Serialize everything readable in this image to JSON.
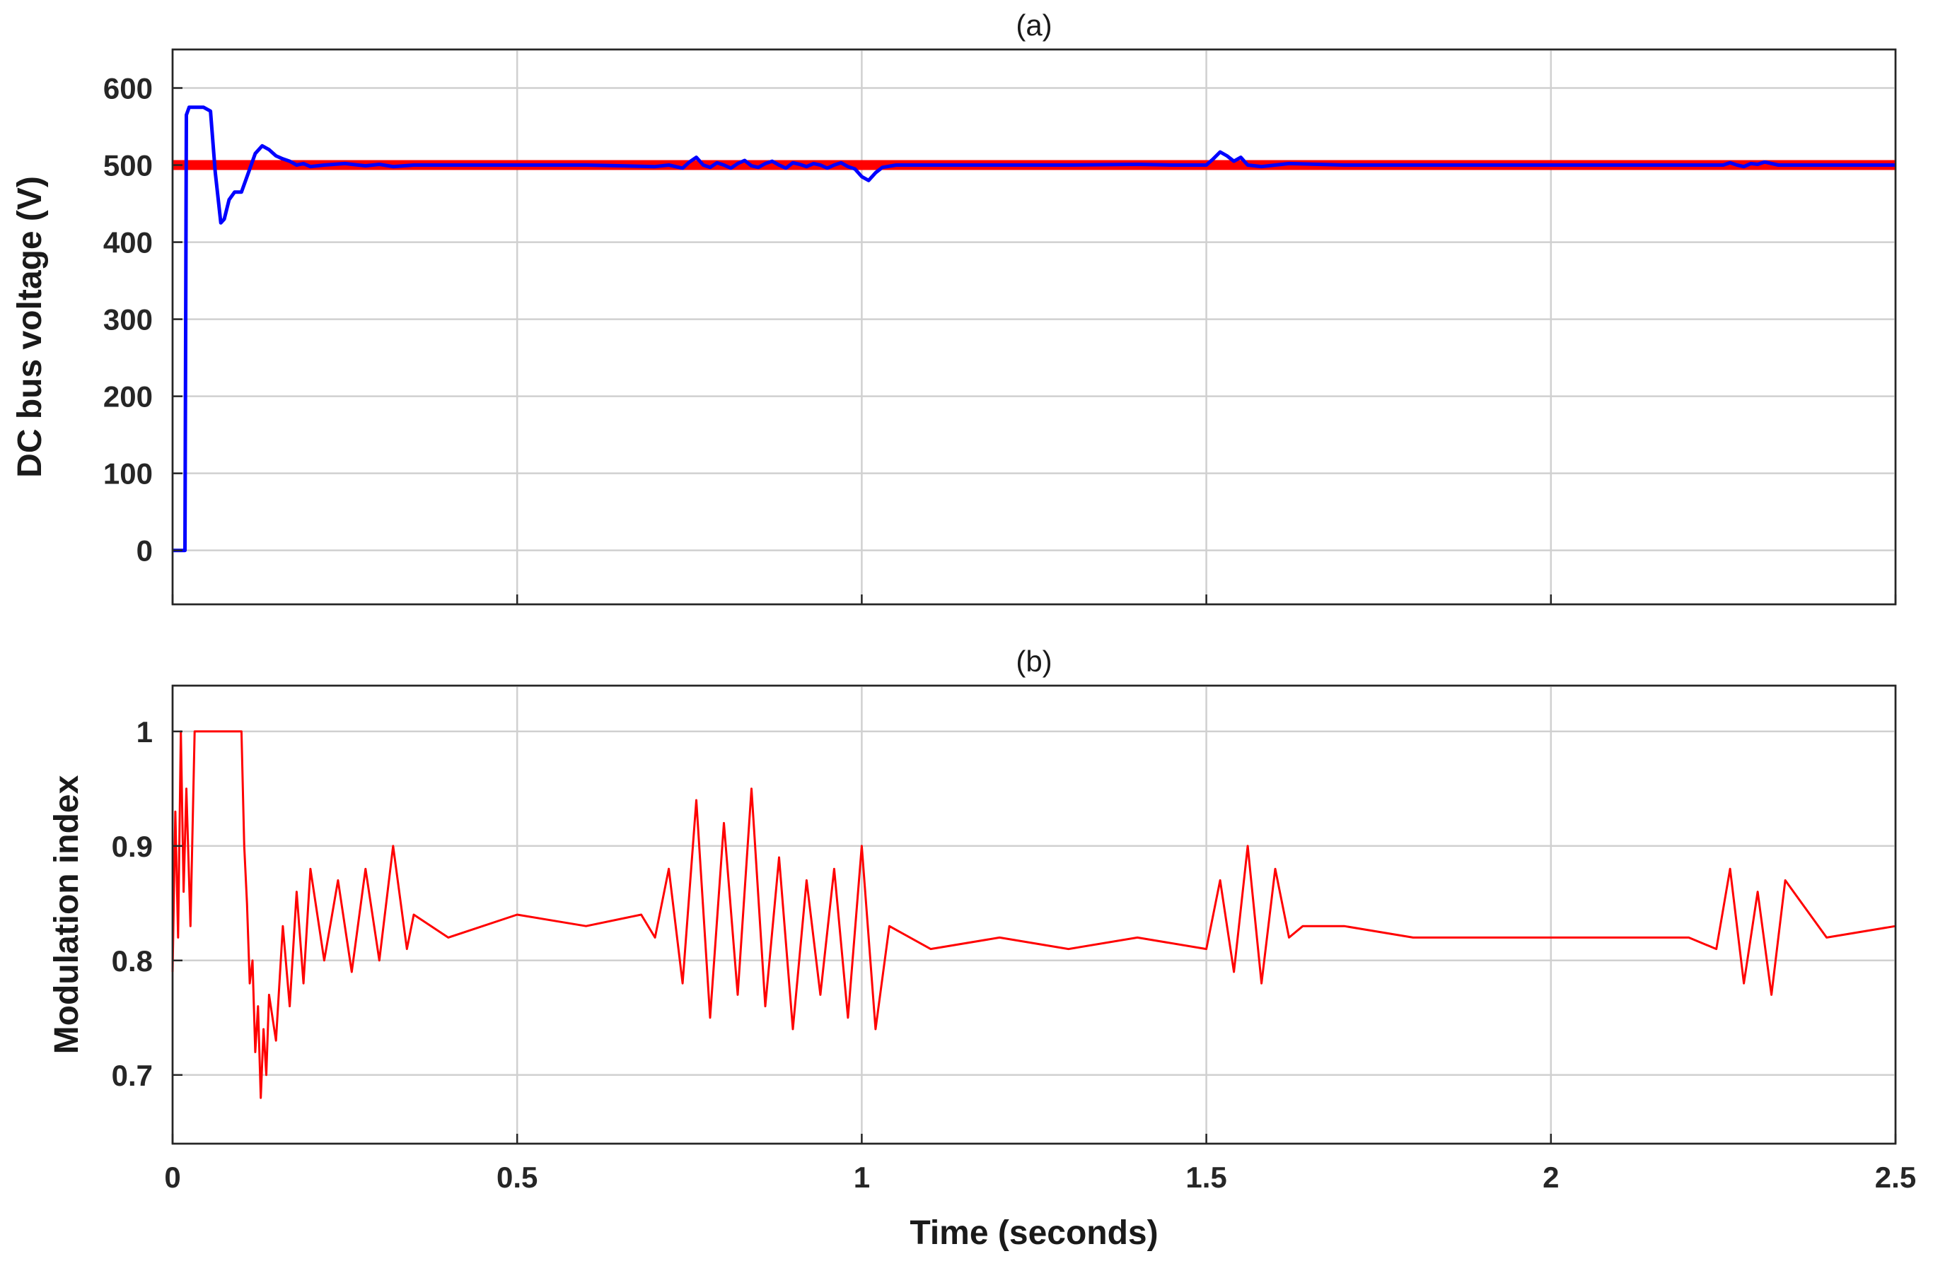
{
  "chart_data": [
    {
      "type": "line",
      "title": "(a)",
      "xlabel": "",
      "ylabel": "DC bus voltage (V)",
      "xlim": [
        0,
        2.5
      ],
      "ylim": [
        -70,
        650
      ],
      "xticks": [
        0,
        0.5,
        1,
        1.5,
        2,
        2.5
      ],
      "xtick_labels": [
        "",
        "",
        "",
        "",
        "",
        ""
      ],
      "yticks": [
        0,
        100,
        200,
        300,
        400,
        500,
        600
      ],
      "ytick_labels": [
        "0",
        "100",
        "200",
        "300",
        "400",
        "500",
        "600"
      ],
      "grid": true,
      "series": [
        {
          "color": "#ff0000",
          "width": 14,
          "x": [
            0,
            2.5
          ],
          "y": [
            500,
            500
          ]
        },
        {
          "color": "#0000ff",
          "width": 5,
          "x": [
            0,
            0.018,
            0.02,
            0.024,
            0.03,
            0.045,
            0.055,
            0.062,
            0.07,
            0.075,
            0.082,
            0.09,
            0.1,
            0.11,
            0.12,
            0.13,
            0.14,
            0.15,
            0.16,
            0.17,
            0.18,
            0.19,
            0.2,
            0.22,
            0.25,
            0.28,
            0.3,
            0.32,
            0.35,
            0.4,
            0.5,
            0.6,
            0.7,
            0.72,
            0.74,
            0.75,
            0.76,
            0.77,
            0.78,
            0.79,
            0.8,
            0.81,
            0.82,
            0.83,
            0.84,
            0.85,
            0.86,
            0.87,
            0.88,
            0.89,
            0.9,
            0.91,
            0.92,
            0.93,
            0.94,
            0.95,
            0.96,
            0.97,
            0.98,
            0.99,
            1.0,
            1.01,
            1.02,
            1.03,
            1.05,
            1.1,
            1.2,
            1.3,
            1.4,
            1.45,
            1.5,
            1.51,
            1.52,
            1.53,
            1.54,
            1.55,
            1.56,
            1.58,
            1.6,
            1.62,
            1.7,
            1.8,
            1.9,
            2.0,
            2.1,
            2.2,
            2.25,
            2.26,
            2.27,
            2.28,
            2.29,
            2.3,
            2.31,
            2.33,
            2.4,
            2.5
          ],
          "y": [
            0,
            0,
            565,
            575,
            575,
            575,
            570,
            490,
            425,
            430,
            455,
            465,
            465,
            490,
            515,
            525,
            520,
            512,
            508,
            505,
            500,
            502,
            498,
            500,
            502,
            499,
            501,
            498,
            500,
            500,
            500,
            500,
            498,
            500,
            496,
            504,
            510,
            500,
            497,
            503,
            500,
            496,
            502,
            506,
            499,
            497,
            502,
            505,
            500,
            496,
            503,
            501,
            498,
            502,
            500,
            496,
            500,
            503,
            498,
            495,
            485,
            480,
            490,
            497,
            500,
            500,
            500,
            500,
            501,
            500,
            500,
            508,
            517,
            512,
            505,
            510,
            500,
            498,
            500,
            502,
            500,
            500,
            500,
            500,
            500,
            500,
            500,
            503,
            500,
            498,
            502,
            501,
            504,
            500,
            500,
            500
          ]
        }
      ]
    },
    {
      "type": "line",
      "title": "(b)",
      "xlabel": "Time (seconds)",
      "ylabel": "Modulation index",
      "xlim": [
        0,
        2.5
      ],
      "ylim": [
        0.64,
        1.04
      ],
      "xticks": [
        0,
        0.5,
        1,
        1.5,
        2,
        2.5
      ],
      "xtick_labels": [
        "0",
        "0.5",
        "1",
        "1.5",
        "2",
        "2.5"
      ],
      "yticks": [
        0.7,
        0.8,
        0.9,
        1
      ],
      "ytick_labels": [
        "0.7",
        "0.8",
        "0.9",
        "1"
      ],
      "grid": true,
      "series": [
        {
          "color": "#ff0000",
          "width": 3,
          "x": [
            0,
            0.004,
            0.008,
            0.012,
            0.016,
            0.02,
            0.026,
            0.032,
            0.04,
            0.1,
            0.104,
            0.108,
            0.112,
            0.116,
            0.12,
            0.124,
            0.128,
            0.132,
            0.136,
            0.14,
            0.15,
            0.16,
            0.17,
            0.18,
            0.19,
            0.2,
            0.22,
            0.24,
            0.26,
            0.28,
            0.3,
            0.32,
            0.34,
            0.35,
            0.4,
            0.5,
            0.6,
            0.68,
            0.7,
            0.72,
            0.74,
            0.76,
            0.78,
            0.8,
            0.82,
            0.84,
            0.86,
            0.88,
            0.9,
            0.92,
            0.94,
            0.96,
            0.98,
            1.0,
            1.02,
            1.04,
            1.1,
            1.2,
            1.3,
            1.4,
            1.5,
            1.52,
            1.54,
            1.56,
            1.58,
            1.6,
            1.62,
            1.64,
            1.7,
            1.8,
            1.9,
            2.0,
            2.1,
            2.2,
            2.24,
            2.26,
            2.28,
            2.3,
            2.32,
            2.34,
            2.4,
            2.5
          ],
          "y": [
            0.79,
            0.93,
            0.82,
            1.0,
            0.86,
            0.95,
            0.83,
            1.0,
            1.0,
            1.0,
            0.9,
            0.85,
            0.78,
            0.8,
            0.72,
            0.76,
            0.68,
            0.74,
            0.7,
            0.77,
            0.73,
            0.83,
            0.76,
            0.86,
            0.78,
            0.88,
            0.8,
            0.87,
            0.79,
            0.88,
            0.8,
            0.9,
            0.81,
            0.84,
            0.82,
            0.84,
            0.83,
            0.84,
            0.82,
            0.88,
            0.78,
            0.94,
            0.75,
            0.92,
            0.77,
            0.95,
            0.76,
            0.89,
            0.74,
            0.87,
            0.77,
            0.88,
            0.75,
            0.9,
            0.74,
            0.83,
            0.81,
            0.82,
            0.81,
            0.82,
            0.81,
            0.87,
            0.79,
            0.9,
            0.78,
            0.88,
            0.82,
            0.83,
            0.83,
            0.82,
            0.82,
            0.82,
            0.82,
            0.82,
            0.81,
            0.88,
            0.78,
            0.86,
            0.77,
            0.87,
            0.82,
            0.83
          ]
        }
      ]
    }
  ]
}
